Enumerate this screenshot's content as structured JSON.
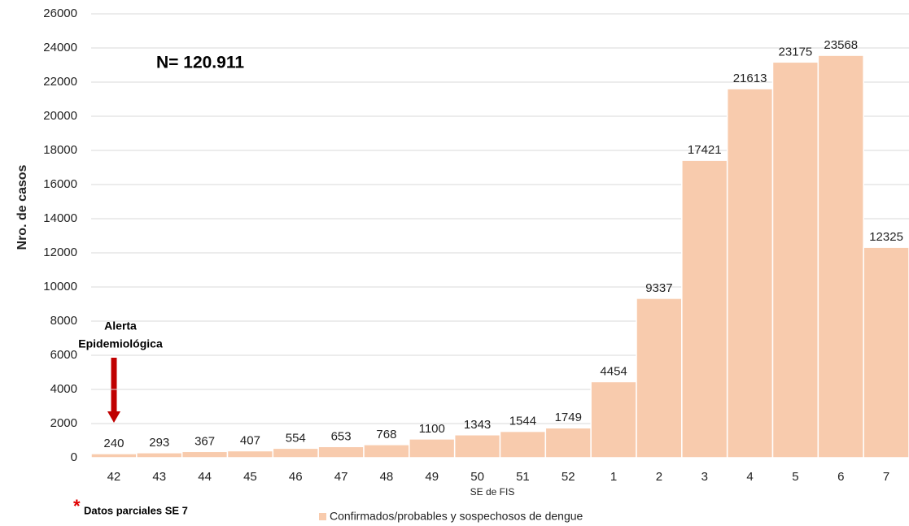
{
  "chart_data": {
    "type": "bar",
    "categories": [
      "42",
      "43",
      "44",
      "45",
      "46",
      "47",
      "48",
      "49",
      "50",
      "51",
      "52",
      "1",
      "2",
      "3",
      "4",
      "5",
      "6",
      "7"
    ],
    "series": [
      {
        "name": "Confirmados/probables y sospechosos de dengue",
        "color": "#f8cbad",
        "values": [
          240,
          293,
          367,
          407,
          554,
          653,
          768,
          1100,
          1343,
          1544,
          1749,
          4454,
          9337,
          17421,
          21613,
          23175,
          23568,
          12325
        ]
      }
    ],
    "ylim": [
      0,
      26000
    ],
    "yticks": [
      0,
      2000,
      4000,
      6000,
      8000,
      10000,
      12000,
      14000,
      16000,
      18000,
      20000,
      22000,
      24000,
      26000
    ],
    "grid": true,
    "xlabel": "SE de FIS",
    "ylabel": "Nro. de casos",
    "annotation_total": "N= 120.911",
    "annotation_alert": [
      "Alerta",
      "Epidemiológica"
    ],
    "footnote_mark": "*",
    "footnote": "Datos parciales SE 7",
    "legend": "bottom"
  }
}
